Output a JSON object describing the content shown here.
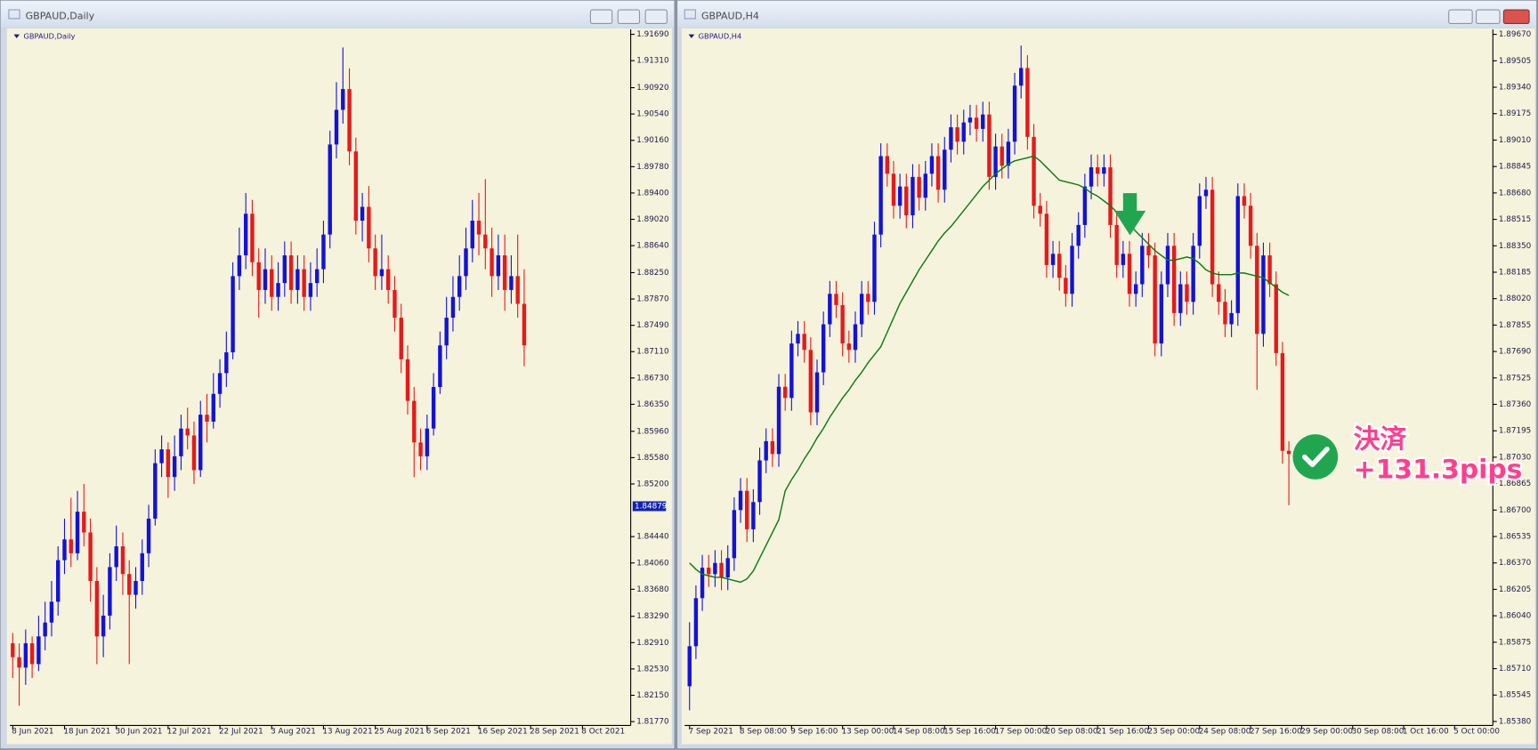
{
  "windows": [
    {
      "title": "GBPAUD,Daily"
    },
    {
      "title": "GBPAUD,H4"
    }
  ],
  "chart_data": [
    {
      "type": "candlestick",
      "label": "GBPAUD,Daily",
      "up_color": "#1212dc",
      "down_color": "#e8191a",
      "open": [
        1.829,
        1.827,
        1.8255,
        1.829,
        1.826,
        1.83,
        1.832,
        1.835,
        1.841,
        1.844,
        1.842,
        1.848,
        1.845,
        1.838,
        1.83,
        1.833,
        1.84,
        1.843,
        1.839,
        1.836,
        1.838,
        1.842,
        1.847,
        1.855,
        1.857,
        1.853,
        1.856,
        1.86,
        1.859,
        1.854,
        1.862,
        1.861,
        1.865,
        1.868,
        1.871,
        1.882,
        1.885,
        1.891,
        1.884,
        1.88,
        1.883,
        1.879,
        1.881,
        1.885,
        1.88,
        1.883,
        1.879,
        1.881,
        1.883,
        1.888,
        1.901,
        1.906,
        1.909,
        1.9,
        1.89,
        1.892,
        1.886,
        1.882,
        1.883,
        1.88,
        1.876,
        1.87,
        1.864,
        1.858,
        1.856,
        1.86,
        1.866,
        1.872,
        1.876,
        1.879,
        1.882,
        1.886,
        1.89,
        1.888,
        1.886,
        1.882,
        1.885,
        1.88,
        1.882,
        1.878
      ],
      "high": [
        1.8305,
        1.829,
        1.831,
        1.83,
        1.833,
        1.835,
        1.838,
        1.843,
        1.847,
        1.85,
        1.851,
        1.852,
        1.847,
        1.84,
        1.836,
        1.842,
        1.846,
        1.845,
        1.841,
        1.84,
        1.844,
        1.849,
        1.857,
        1.859,
        1.858,
        1.859,
        1.862,
        1.863,
        1.861,
        1.864,
        1.865,
        1.868,
        1.87,
        1.874,
        1.884,
        1.889,
        1.894,
        1.893,
        1.886,
        1.886,
        1.885,
        1.884,
        1.887,
        1.887,
        1.885,
        1.885,
        1.884,
        1.886,
        1.89,
        1.903,
        1.91,
        1.915,
        1.912,
        1.902,
        1.894,
        1.895,
        1.888,
        1.888,
        1.885,
        1.882,
        1.878,
        1.872,
        1.866,
        1.86,
        1.862,
        1.868,
        1.874,
        1.879,
        1.882,
        1.885,
        1.889,
        1.893,
        1.894,
        1.896,
        1.889,
        1.888,
        1.888,
        1.885,
        1.888,
        1.883
      ],
      "low": [
        1.824,
        1.82,
        1.823,
        1.824,
        1.825,
        1.828,
        1.83,
        1.833,
        1.839,
        1.84,
        1.841,
        1.843,
        1.835,
        1.826,
        1.827,
        1.831,
        1.838,
        1.836,
        1.826,
        1.834,
        1.836,
        1.84,
        1.846,
        1.853,
        1.85,
        1.851,
        1.854,
        1.857,
        1.852,
        1.853,
        1.858,
        1.86,
        1.863,
        1.866,
        1.87,
        1.88,
        1.883,
        1.882,
        1.876,
        1.878,
        1.877,
        1.877,
        1.879,
        1.878,
        1.878,
        1.877,
        1.877,
        1.879,
        1.881,
        1.886,
        1.899,
        1.904,
        1.898,
        1.888,
        1.887,
        1.884,
        1.88,
        1.88,
        1.878,
        1.874,
        1.868,
        1.862,
        1.853,
        1.854,
        1.854,
        1.859,
        1.865,
        1.87,
        1.874,
        1.877,
        1.88,
        1.884,
        1.885,
        1.883,
        1.879,
        1.88,
        1.877,
        1.878,
        1.876,
        1.869
      ],
      "close": [
        1.827,
        1.8255,
        1.829,
        1.826,
        1.83,
        1.832,
        1.835,
        1.841,
        1.844,
        1.842,
        1.848,
        1.845,
        1.838,
        1.83,
        1.833,
        1.84,
        1.843,
        1.839,
        1.836,
        1.838,
        1.842,
        1.847,
        1.855,
        1.857,
        1.853,
        1.856,
        1.86,
        1.859,
        1.854,
        1.862,
        1.861,
        1.865,
        1.868,
        1.871,
        1.882,
        1.885,
        1.891,
        1.884,
        1.88,
        1.883,
        1.879,
        1.881,
        1.885,
        1.88,
        1.883,
        1.879,
        1.881,
        1.883,
        1.888,
        1.901,
        1.906,
        1.909,
        1.9,
        1.89,
        1.892,
        1.886,
        1.882,
        1.883,
        1.88,
        1.876,
        1.87,
        1.864,
        1.858,
        1.856,
        1.86,
        1.866,
        1.872,
        1.876,
        1.879,
        1.882,
        1.886,
        1.89,
        1.888,
        1.886,
        1.882,
        1.885,
        1.88,
        1.882,
        1.878,
        1.872
      ],
      "xlim": [
        -0.45,
        95.45
      ],
      "xticks": [
        {
          "value": 0,
          "label": "8 Jun 2021"
        },
        {
          "value": 8,
          "label": "18 Jun 2021"
        },
        {
          "value": 16,
          "label": "30 Jun 2021"
        },
        {
          "value": 24,
          "label": "12 Jul 2021"
        },
        {
          "value": 32,
          "label": "22 Jul 2021"
        },
        {
          "value": 40,
          "label": "3 Aug 2021"
        },
        {
          "value": 48,
          "label": "13 Aug 2021"
        },
        {
          "value": 56,
          "label": "25 Aug 2021"
        },
        {
          "value": 64,
          "label": "6 Sep 2021"
        },
        {
          "value": 72,
          "label": "16 Sep 2021"
        },
        {
          "value": 80,
          "label": "28 Sep 2021"
        },
        {
          "value": 88,
          "label": "8 Oct 2021"
        }
      ],
      "ylim": [
        1.81714,
        1.91761
      ],
      "yticks": [
        {
          "value": 1.9169,
          "label": "1.91690"
        },
        {
          "value": 1.9131,
          "label": "1.91310"
        },
        {
          "value": 1.9092,
          "label": "1.90920"
        },
        {
          "value": 1.9054,
          "label": "1.90540"
        },
        {
          "value": 1.9016,
          "label": "1.90160"
        },
        {
          "value": 1.8978,
          "label": "1.89780"
        },
        {
          "value": 1.894,
          "label": "1.89400"
        },
        {
          "value": 1.8902,
          "label": "1.89020"
        },
        {
          "value": 1.8864,
          "label": "1.88640"
        },
        {
          "value": 1.8825,
          "label": "1.88250"
        },
        {
          "value": 1.8787,
          "label": "1.87870"
        },
        {
          "value": 1.8749,
          "label": "1.87490"
        },
        {
          "value": 1.8711,
          "label": "1.87110"
        },
        {
          "value": 1.8673,
          "label": "1.86730"
        },
        {
          "value": 1.8635,
          "label": "1.86350"
        },
        {
          "value": 1.8596,
          "label": "1.85960"
        },
        {
          "value": 1.8558,
          "label": "1.85580"
        },
        {
          "value": 1.852,
          "label": "1.85200"
        },
        {
          "value": 1.8444,
          "label": "1.84440"
        },
        {
          "value": 1.8406,
          "label": "1.84060"
        },
        {
          "value": 1.8368,
          "label": "1.83680"
        },
        {
          "value": 1.8329,
          "label": "1.83290"
        },
        {
          "value": 1.8291,
          "label": "1.82910"
        },
        {
          "value": 1.8253,
          "label": "1.82530"
        },
        {
          "value": 1.8215,
          "label": "1.82150"
        },
        {
          "value": 1.8177,
          "label": "1.81770"
        }
      ],
      "last_price": {
        "value": 1.84879,
        "label": "1.84879"
      }
    },
    {
      "type": "candlestick",
      "label": "GBPAUD,H4",
      "up_color": "#1212dc",
      "down_color": "#e8191a",
      "open": [
        1.856,
        1.8585,
        1.8615,
        1.8634,
        1.863,
        1.8637,
        1.8628,
        1.864,
        1.867,
        1.8682,
        1.8658,
        1.8675,
        1.8701,
        1.8713,
        1.8705,
        1.8747,
        1.874,
        1.8774,
        1.878,
        1.877,
        1.8731,
        1.8756,
        1.8786,
        1.8805,
        1.8798,
        1.8774,
        1.877,
        1.8786,
        1.8805,
        1.88,
        1.8842,
        1.8891,
        1.888,
        1.886,
        1.8872,
        1.8854,
        1.8878,
        1.8865,
        1.888,
        1.8891,
        1.887,
        1.8895,
        1.8909,
        1.89,
        1.8912,
        1.8915,
        1.8908,
        1.8917,
        1.8878,
        1.8897,
        1.8885,
        1.89,
        1.8935,
        1.8946,
        1.8903,
        1.886,
        1.8855,
        1.8823,
        1.883,
        1.8815,
        1.8805,
        1.8835,
        1.8848,
        1.8872,
        1.8884,
        1.888,
        1.8884,
        1.8848,
        1.8823,
        1.883,
        1.8805,
        1.8811,
        1.8835,
        1.8829,
        1.8774,
        1.8811,
        1.8835,
        1.8793,
        1.8811,
        1.88,
        1.8835,
        1.8866,
        1.887,
        1.8811,
        1.88,
        1.8786,
        1.8793,
        1.8866,
        1.886,
        1.8835,
        1.878,
        1.8829,
        1.8811,
        1.8768,
        1.8707
      ],
      "high": [
        1.86,
        1.8623,
        1.8642,
        1.8642,
        1.8645,
        1.8645,
        1.8648,
        1.8678,
        1.869,
        1.869,
        1.8683,
        1.8709,
        1.8721,
        1.8721,
        1.8755,
        1.8755,
        1.8782,
        1.8788,
        1.8788,
        1.8778,
        1.8764,
        1.8794,
        1.8813,
        1.8813,
        1.8806,
        1.8782,
        1.8794,
        1.8813,
        1.8813,
        1.885,
        1.8899,
        1.8899,
        1.8888,
        1.888,
        1.888,
        1.8886,
        1.8886,
        1.8888,
        1.8899,
        1.8899,
        1.8903,
        1.8917,
        1.8917,
        1.892,
        1.8923,
        1.8923,
        1.8925,
        1.8925,
        1.8905,
        1.8905,
        1.8908,
        1.8943,
        1.896,
        1.8954,
        1.8911,
        1.8868,
        1.8863,
        1.8838,
        1.8838,
        1.8823,
        1.8843,
        1.8856,
        1.888,
        1.8892,
        1.8892,
        1.8892,
        1.8892,
        1.8856,
        1.8838,
        1.8838,
        1.8819,
        1.8843,
        1.8843,
        1.8837,
        1.8819,
        1.8843,
        1.8843,
        1.8819,
        1.8819,
        1.8843,
        1.8874,
        1.8878,
        1.8878,
        1.8819,
        1.8808,
        1.8801,
        1.8874,
        1.8874,
        1.8868,
        1.8843,
        1.8837,
        1.8837,
        1.8819,
        1.8775,
        1.8713
      ],
      "low": [
        1.8545,
        1.8577,
        1.8607,
        1.8622,
        1.8622,
        1.862,
        1.862,
        1.8632,
        1.8662,
        1.865,
        1.865,
        1.8667,
        1.8693,
        1.8697,
        1.8697,
        1.8732,
        1.8732,
        1.8766,
        1.8762,
        1.8723,
        1.8723,
        1.8748,
        1.8778,
        1.879,
        1.8766,
        1.8762,
        1.8762,
        1.8778,
        1.8792,
        1.8792,
        1.8834,
        1.8872,
        1.8852,
        1.8852,
        1.8846,
        1.8846,
        1.8857,
        1.8857,
        1.8872,
        1.8862,
        1.8862,
        1.8887,
        1.8892,
        1.8892,
        1.8904,
        1.89,
        1.89,
        1.887,
        1.887,
        1.8877,
        1.8877,
        1.8892,
        1.8927,
        1.8895,
        1.8852,
        1.8847,
        1.8815,
        1.8815,
        1.8807,
        1.8797,
        1.8797,
        1.8827,
        1.884,
        1.8864,
        1.8872,
        1.8872,
        1.884,
        1.8815,
        1.8815,
        1.8797,
        1.8797,
        1.8803,
        1.8821,
        1.8766,
        1.8766,
        1.8803,
        1.8785,
        1.8785,
        1.8792,
        1.8792,
        1.8827,
        1.8858,
        1.8803,
        1.8792,
        1.8778,
        1.8778,
        1.8785,
        1.8852,
        1.8827,
        1.8745,
        1.8772,
        1.8803,
        1.876,
        1.8699,
        1.8673
      ],
      "close": [
        1.8585,
        1.8615,
        1.8634,
        1.863,
        1.8637,
        1.8628,
        1.864,
        1.867,
        1.8682,
        1.8658,
        1.8675,
        1.8701,
        1.8713,
        1.8705,
        1.8747,
        1.874,
        1.8774,
        1.878,
        1.877,
        1.8731,
        1.8756,
        1.8786,
        1.8805,
        1.8798,
        1.8774,
        1.877,
        1.8786,
        1.8805,
        1.88,
        1.8842,
        1.8891,
        1.888,
        1.886,
        1.8872,
        1.8854,
        1.8878,
        1.8865,
        1.888,
        1.8891,
        1.887,
        1.8895,
        1.8909,
        1.89,
        1.8912,
        1.8915,
        1.8908,
        1.8917,
        1.8878,
        1.8897,
        1.8885,
        1.89,
        1.8935,
        1.8946,
        1.8903,
        1.886,
        1.8855,
        1.8823,
        1.883,
        1.8815,
        1.8805,
        1.8835,
        1.8848,
        1.8872,
        1.8884,
        1.888,
        1.8884,
        1.8848,
        1.8823,
        1.883,
        1.8805,
        1.8811,
        1.8835,
        1.8829,
        1.8774,
        1.8811,
        1.8835,
        1.8793,
        1.8811,
        1.88,
        1.8835,
        1.8866,
        1.887,
        1.8811,
        1.88,
        1.8786,
        1.8793,
        1.8866,
        1.886,
        1.8835,
        1.878,
        1.8829,
        1.8811,
        1.8768,
        1.8707,
        1.8705
      ],
      "ma": {
        "color": "#0b7a14",
        "values": [
          1.8637,
          1.8633,
          1.863,
          1.8629,
          1.8628,
          1.8628,
          1.8627,
          1.8626,
          1.8625,
          1.8627,
          1.8632,
          1.864,
          1.8648,
          1.8656,
          1.8664,
          1.8682,
          1.8689,
          1.8695,
          1.8702,
          1.8708,
          1.8715,
          1.8721,
          1.8728,
          1.8734,
          1.874,
          1.8745,
          1.8751,
          1.8756,
          1.8762,
          1.8767,
          1.8772,
          1.8781,
          1.879,
          1.8799,
          1.8806,
          1.8813,
          1.882,
          1.8826,
          1.8832,
          1.8838,
          1.8843,
          1.8847,
          1.8852,
          1.8857,
          1.8862,
          1.8867,
          1.8872,
          1.8876,
          1.888,
          1.8883,
          1.8886,
          1.8888,
          1.8889,
          1.889,
          1.8891,
          1.8888,
          1.8884,
          1.888,
          1.8876,
          1.8875,
          1.8874,
          1.8873,
          1.8871,
          1.8868,
          1.8866,
          1.8863,
          1.886,
          1.8856,
          1.8852,
          1.8848,
          1.8844,
          1.884,
          1.8836,
          1.8832,
          1.8829,
          1.8826,
          1.8826,
          1.8827,
          1.8828,
          1.8827,
          1.8824,
          1.882,
          1.8818,
          1.8817,
          1.8817,
          1.8817,
          1.8818,
          1.8818,
          1.8817,
          1.8816,
          1.8815,
          1.8812,
          1.8809,
          1.8806,
          1.8804
        ]
      },
      "xlim": [
        -0.77,
        126
      ],
      "xticks": [
        {
          "value": 0,
          "label": "7 Sep 2021"
        },
        {
          "value": 8,
          "label": "8 Sep 08:00"
        },
        {
          "value": 16,
          "label": "9 Sep 16:00"
        },
        {
          "value": 24,
          "label": "13 Sep 00:00"
        },
        {
          "value": 32,
          "label": "14 Sep 08:00"
        },
        {
          "value": 40,
          "label": "15 Sep 16:00"
        },
        {
          "value": 48,
          "label": "17 Sep 00:00"
        },
        {
          "value": 56,
          "label": "20 Sep 08:00"
        },
        {
          "value": 64,
          "label": "21 Sep 16:00"
        },
        {
          "value": 72,
          "label": "23 Sep 00:00"
        },
        {
          "value": 80,
          "label": "24 Sep 08:00"
        },
        {
          "value": 88,
          "label": "27 Sep 16:00"
        },
        {
          "value": 96,
          "label": "29 Sep 00:00"
        },
        {
          "value": 104,
          "label": "30 Sep 08:00"
        },
        {
          "value": 112,
          "label": "1 Oct 16:00"
        },
        {
          "value": 120,
          "label": "5 Oct 00:00"
        }
      ],
      "ylim": [
        1.85355,
        1.89701
      ],
      "yticks": [
        {
          "value": 1.8967,
          "label": "1.89670"
        },
        1.89505,
        {
          "value": 1.8934,
          "label": "1.89340"
        },
        1.89175,
        {
          "value": 1.8901,
          "label": "1.89010"
        },
        1.88845,
        {
          "value": 1.8868,
          "label": "1.88680"
        },
        1.88515,
        {
          "value": 1.8835,
          "label": "1.88350"
        },
        1.88185,
        {
          "value": 1.8802,
          "label": "1.88020"
        },
        1.87855,
        {
          "value": 1.8769,
          "label": "1.87690"
        },
        1.87525,
        {
          "value": 1.8736,
          "label": "1.87360"
        },
        1.87195,
        {
          "value": 1.8703,
          "label": "1.87030"
        },
        1.86865,
        {
          "value": 1.867,
          "label": "1.86700"
        },
        1.86535,
        {
          "value": 1.8637,
          "label": "1.86370"
        },
        1.86205,
        {
          "value": 1.8604,
          "label": "1.86040"
        },
        1.85875,
        {
          "value": 1.8571,
          "label": "1.85710"
        },
        1.85545,
        {
          "value": 1.8538,
          "label": "1.85380"
        }
      ],
      "annotation": {
        "title": "決済",
        "text": "+131.3pips"
      }
    }
  ]
}
